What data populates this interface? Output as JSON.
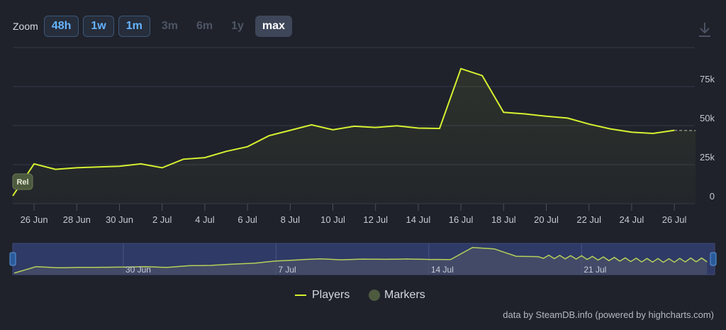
{
  "zoom": {
    "label": "Zoom",
    "buttons": [
      {
        "label": "48h",
        "state": "on"
      },
      {
        "label": "1w",
        "state": "on"
      },
      {
        "label": "1m",
        "state": "on"
      },
      {
        "label": "3m",
        "state": "off"
      },
      {
        "label": "6m",
        "state": "off"
      },
      {
        "label": "1y",
        "state": "off"
      },
      {
        "label": "max",
        "state": "sel"
      }
    ]
  },
  "download_icon": "download-icon",
  "chart_data": {
    "type": "line",
    "x": [
      "25 Jun",
      "26 Jun",
      "27 Jun",
      "28 Jun",
      "29 Jun",
      "30 Jun",
      "1 Jul",
      "2 Jul",
      "3 Jul",
      "4 Jul",
      "5 Jul",
      "6 Jul",
      "7 Jul",
      "8 Jul",
      "9 Jul",
      "10 Jul",
      "11 Jul",
      "12 Jul",
      "13 Jul",
      "14 Jul",
      "15 Jul",
      "16 Jul",
      "17 Jul",
      "18 Jul",
      "19 Jul",
      "20 Jul",
      "21 Jul",
      "22 Jul",
      "23 Jul",
      "24 Jul",
      "25 Jul",
      "26 Jul",
      "27 Jul"
    ],
    "series": [
      {
        "name": "Players",
        "values": [
          5000,
          25500,
          22000,
          23000,
          23500,
          24000,
          25500,
          23000,
          28500,
          29500,
          33500,
          36500,
          43500,
          47000,
          50500,
          47300,
          49600,
          48800,
          49900,
          48400,
          48200,
          86500,
          82000,
          58500,
          57500,
          56000,
          54800,
          51000,
          47900,
          45800,
          45000,
          47000,
          46800
        ]
      }
    ],
    "marker_label": "Rel",
    "x_ticks": [
      "26 Jun",
      "28 Jun",
      "30 Jun",
      "2 Jul",
      "4 Jul",
      "6 Jul",
      "8 Jul",
      "10 Jul",
      "12 Jul",
      "14 Jul",
      "16 Jul",
      "18 Jul",
      "20 Jul",
      "22 Jul",
      "24 Jul",
      "26 Jul"
    ],
    "y_ticks": [
      {
        "value": 0,
        "label": "0"
      },
      {
        "value": 25000,
        "label": "25k"
      },
      {
        "value": 50000,
        "label": "50k"
      },
      {
        "value": 75000,
        "label": "75k"
      }
    ],
    "ylim": [
      0,
      100000
    ],
    "navigator_ticks": [
      "30 Jun",
      "7 Jul",
      "14 Jul",
      "21 Jul"
    ],
    "legend": [
      "Players",
      "Markers"
    ],
    "colors": {
      "line": "#d6f030",
      "marker": "#4d5a3e",
      "navigator_bg": "#2f3a66",
      "grid": "#353a47"
    }
  },
  "credits": "data by SteamDB.info (powered by highcharts.com)"
}
